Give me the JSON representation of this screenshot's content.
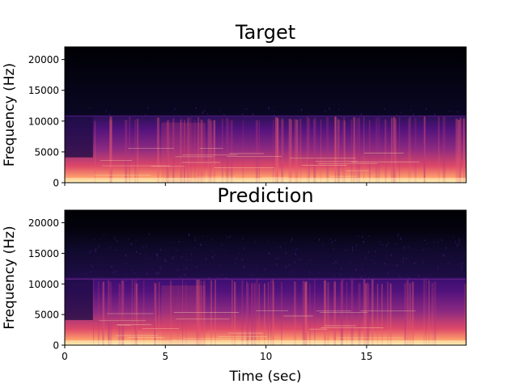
{
  "chart_data": [
    {
      "type": "heatmap",
      "title": "Target",
      "xlabel": "",
      "ylabel": "Frequency (Hz)",
      "xlim": [
        0,
        19.95
      ],
      "ylim": [
        0,
        22050
      ],
      "x_ticks": [
        0,
        5,
        10,
        15
      ],
      "x_tick_labels_visible": false,
      "y_ticks": [
        0,
        5000,
        10000,
        15000,
        20000
      ],
      "y_tick_labels": [
        "0",
        "5000",
        "10000",
        "15000",
        "20000"
      ],
      "colormap": "magma",
      "cutoff_hz": 10800,
      "onset_sec": 1.4,
      "grid": false
    },
    {
      "type": "heatmap",
      "title": "Prediction",
      "xlabel": "Time (sec)",
      "ylabel": "Frequency (Hz)",
      "xlim": [
        0,
        19.95
      ],
      "ylim": [
        0,
        22050
      ],
      "x_ticks": [
        0,
        5,
        10,
        15
      ],
      "x_tick_labels": [
        "0",
        "5",
        "10",
        "15"
      ],
      "y_ticks": [
        0,
        5000,
        10000,
        15000,
        20000
      ],
      "y_tick_labels": [
        "0",
        "5000",
        "10000",
        "15000",
        "20000"
      ],
      "colormap": "magma",
      "cutoff_hz": 10800,
      "onset_sec": 1.4,
      "grid": false
    }
  ]
}
